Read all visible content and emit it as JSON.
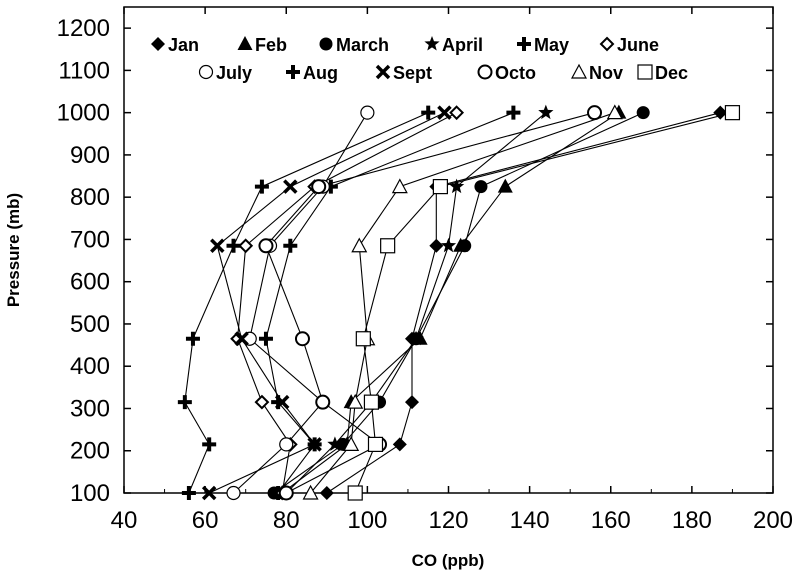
{
  "chart_data": {
    "type": "line",
    "title": "",
    "xlabel": "CO (ppb)",
    "ylabel": "Pressure (mb)",
    "xlim": [
      40,
      200
    ],
    "ylim": [
      100,
      1250
    ],
    "xticks": [
      "40",
      "60",
      "80",
      "100",
      "120",
      "140",
      "160",
      "180",
      "200"
    ],
    "yticks": [
      "100",
      "200",
      "300",
      "400",
      "500",
      "600",
      "700",
      "800",
      "900",
      "1000",
      "1100",
      "1200"
    ],
    "grid": false,
    "legend_position": "top",
    "pressure_levels": [
      1000,
      825,
      685,
      465,
      315,
      215,
      100
    ],
    "series": [
      {
        "name": "Jan",
        "marker": "diamond-filled",
        "x": [
          187,
          117,
          117,
          111,
          111,
          108,
          90
        ]
      },
      {
        "name": "Feb",
        "marker": "triangle-filled",
        "x": [
          162,
          134,
          123,
          113,
          96,
          95,
          79
        ]
      },
      {
        "name": "March",
        "marker": "circle-filled",
        "x": [
          168,
          128,
          124,
          112,
          103,
          94,
          77
        ]
      },
      {
        "name": "April",
        "marker": "star",
        "x": [
          144,
          122,
          120,
          112,
          101,
          92,
          80
        ]
      },
      {
        "name": "May",
        "marker": "plus",
        "x": [
          136,
          91,
          81,
          75,
          78,
          87,
          78
        ]
      },
      {
        "name": "June",
        "marker": "diamond-open",
        "x": [
          122,
          87,
          70,
          68,
          74,
          81,
          79
        ]
      },
      {
        "name": "July",
        "marker": "circle-open-thin",
        "x": [
          100,
          89,
          76,
          71,
          89,
          80,
          67
        ]
      },
      {
        "name": "Aug",
        "marker": "plus",
        "x": [
          115,
          74,
          67,
          57,
          55,
          61,
          56
        ]
      },
      {
        "name": "Sept",
        "marker": "cross",
        "x": [
          119,
          81,
          63,
          69,
          79,
          87,
          61
        ]
      },
      {
        "name": "Octo",
        "marker": "circle-open",
        "x": [
          156,
          88,
          75,
          84,
          89,
          103,
          80
        ]
      },
      {
        "name": "Nov",
        "marker": "triangle-open",
        "x": [
          161,
          108,
          98,
          100,
          97,
          96,
          86
        ]
      },
      {
        "name": "Dec",
        "marker": "square-open",
        "x": [
          190,
          118,
          105,
          99,
          101,
          102,
          97
        ]
      }
    ]
  }
}
